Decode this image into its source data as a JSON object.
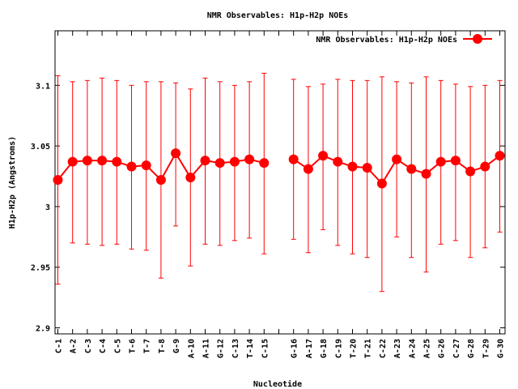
{
  "chart_data": {
    "type": "line",
    "title": "NMR Observables: H1p-H2p NOEs",
    "xlabel": "Nucleotide",
    "ylabel": "H1p-H2p (Angstroms)",
    "ylim": [
      2.895,
      3.145
    ],
    "yticks": [
      2.9,
      2.95,
      3,
      3.05,
      3.1
    ],
    "ytick_labels": [
      "2.9",
      "2.95",
      "3",
      "3.05",
      "3.1"
    ],
    "grid": false,
    "legend_position": "top-right",
    "categories": [
      "C-1",
      "A-2",
      "C-3",
      "C-4",
      "C-5",
      "T-6",
      "T-7",
      "T-8",
      "G-9",
      "A-10",
      "A-11",
      "G-12",
      "C-13",
      "T-14",
      "C-15",
      "",
      "G-16",
      "A-17",
      "G-18",
      "C-19",
      "T-20",
      "T-21",
      "C-22",
      "A-23",
      "A-24",
      "A-25",
      "G-26",
      "C-27",
      "G-28",
      "T-29",
      "G-30"
    ],
    "series": [
      {
        "name": "NMR Observables: H1p-H2p NOEs",
        "color": "#ff0000",
        "values": [
          3.022,
          3.037,
          3.038,
          3.038,
          3.037,
          3.033,
          3.034,
          3.022,
          3.044,
          3.024,
          3.038,
          3.036,
          3.037,
          3.039,
          3.036,
          null,
          3.039,
          3.031,
          3.042,
          3.037,
          3.033,
          3.032,
          3.019,
          3.039,
          3.031,
          3.027,
          3.037,
          3.038,
          3.029,
          3.033,
          3.042
        ],
        "err_low": [
          2.936,
          2.97,
          2.969,
          2.968,
          2.969,
          2.965,
          2.964,
          2.941,
          2.984,
          2.951,
          2.969,
          2.968,
          2.972,
          2.974,
          2.961,
          null,
          2.973,
          2.962,
          2.981,
          2.968,
          2.961,
          2.958,
          2.93,
          2.975,
          2.958,
          2.946,
          2.969,
          2.972,
          2.958,
          2.966,
          2.979
        ],
        "err_high": [
          3.108,
          3.103,
          3.104,
          3.106,
          3.104,
          3.1,
          3.103,
          3.103,
          3.102,
          3.097,
          3.106,
          3.103,
          3.1,
          3.103,
          3.11,
          null,
          3.105,
          3.099,
          3.101,
          3.105,
          3.104,
          3.104,
          3.107,
          3.103,
          3.102,
          3.107,
          3.104,
          3.101,
          3.099,
          3.1,
          3.104
        ]
      }
    ]
  }
}
